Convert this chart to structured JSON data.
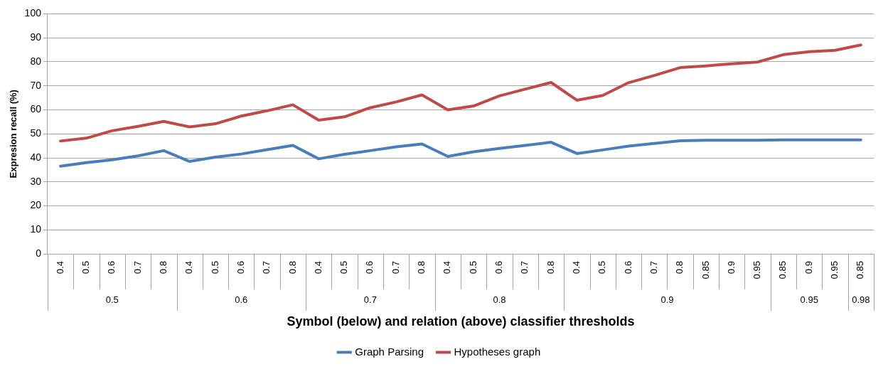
{
  "chart_data": {
    "type": "line",
    "xlabel": "Symbol (below) and relation (above) classifier thresholds",
    "ylabel": "Expresion recall (%)",
    "categories": [
      "0.4",
      "0.5",
      "0.6",
      "0.7",
      "0.8",
      "0.4",
      "0.5",
      "0.6",
      "0.7",
      "0.8",
      "0.4",
      "0.5",
      "0.6",
      "0.7",
      "0.8",
      "0.4",
      "0.5",
      "0.6",
      "0.7",
      "0.8",
      "0.4",
      "0.5",
      "0.6",
      "0.7",
      "0.8",
      "0.85",
      "0.9",
      "0.95",
      "0.85",
      "0.9",
      "0.95",
      "0.85"
    ],
    "annotations": [
      "0.5",
      "0.6",
      "0.7",
      "0.8",
      "0.9",
      "0.95",
      "0.98"
    ],
    "series": [
      {
        "name": "Graph Parsing",
        "color": "#4a7ebb",
        "values": [
          36.5,
          38,
          39.2,
          40.8,
          43,
          38.5,
          40.3,
          41.6,
          43.4,
          45.2,
          39.6,
          41.5,
          43,
          44.6,
          45.8,
          40.6,
          42.5,
          43.9,
          45.2,
          46.5,
          41.8,
          43.3,
          44.9,
          46,
          47.1,
          47.3,
          47.3,
          47.3,
          47.5,
          47.5,
          47.5,
          47.5
        ]
      },
      {
        "name": "Hypotheses graph",
        "color": "#be4b48",
        "values": [
          47,
          48.2,
          51.3,
          53.1,
          55.2,
          52.9,
          54.2,
          57.4,
          59.6,
          62.1,
          55.7,
          57.1,
          60.9,
          63.3,
          66.2,
          60,
          61.6,
          65.8,
          68.6,
          71.4,
          64,
          66,
          71.3,
          74.3,
          77.6,
          78.3,
          79.2,
          79.9,
          83,
          84.2,
          84.8,
          87
        ]
      }
    ],
    "ylim": [
      0,
      100
    ],
    "yticks": [
      0,
      10,
      20,
      30,
      40,
      50,
      60,
      70,
      80,
      90,
      100
    ],
    "grid": "y",
    "legend": "bottom",
    "marker": "none",
    "line_style": "solid"
  }
}
